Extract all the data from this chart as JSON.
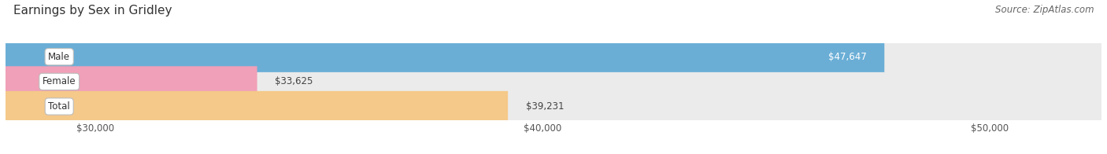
{
  "title": "Earnings by Sex in Gridley",
  "source": "Source: ZipAtlas.com",
  "categories": [
    "Male",
    "Female",
    "Total"
  ],
  "values": [
    47647,
    33625,
    39231
  ],
  "value_labels": [
    "$47,647",
    "$33,625",
    "$39,231"
  ],
  "bar_colors": [
    "#6aaed6",
    "#f0a0b8",
    "#f5c98a"
  ],
  "xmin": 28000,
  "xmax": 52500,
  "xticks": [
    30000,
    40000,
    50000
  ],
  "xticklabels": [
    "$30,000",
    "$40,000",
    "$50,000"
  ],
  "background_color": "#ffffff",
  "bar_bg_color": "#ebebeb",
  "title_fontsize": 11,
  "source_fontsize": 8.5,
  "bar_height": 0.62,
  "figsize": [
    14.06,
    1.96
  ],
  "dpi": 100
}
